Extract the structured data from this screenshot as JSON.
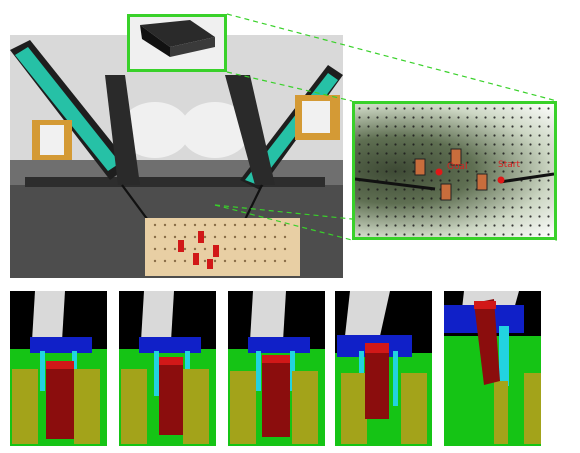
{
  "inset": {
    "goal_label": "Goal",
    "start_label": "Start"
  },
  "colors": {
    "highlight": "#39d12a",
    "marker": "#e01818",
    "peg": "#8b0d0d",
    "rail": "#a3a31a",
    "floor": "#15c415",
    "gripper": "#1020c8",
    "finger": "#22d3e0"
  },
  "sequence": {
    "frames": 5
  }
}
